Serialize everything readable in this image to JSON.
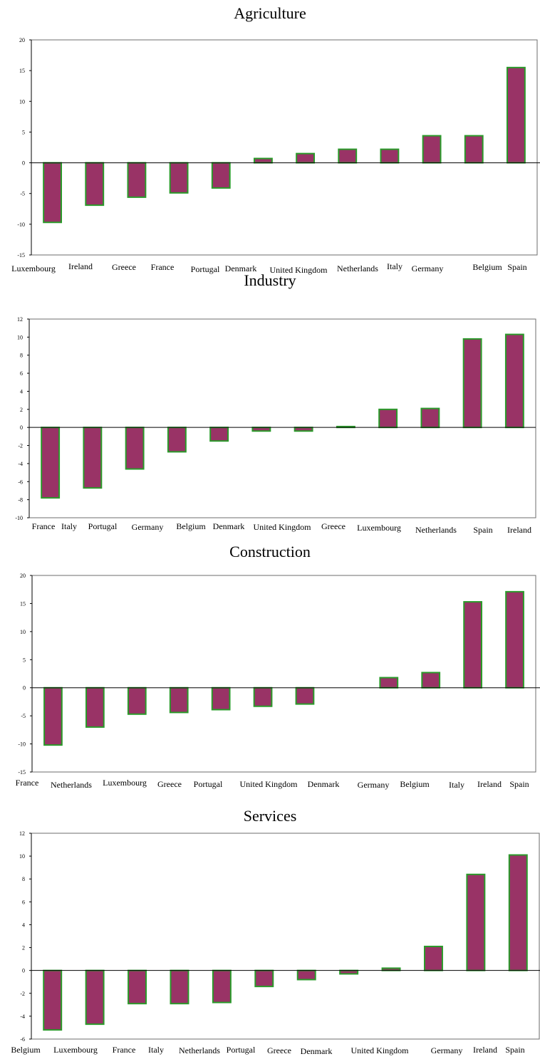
{
  "chart_data": [
    {
      "type": "bar",
      "title": "Agriculture",
      "categories": [
        "Luxembourg",
        "Ireland",
        "Greece",
        "France",
        "Portugal",
        "Denmark",
        "United Kingdom",
        "Netherlands",
        "Italy",
        "Germany",
        "Belgium",
        "Spain"
      ],
      "values": [
        -9.7,
        -6.9,
        -5.6,
        -4.9,
        -4.1,
        0.7,
        1.5,
        2.2,
        2.2,
        4.4,
        4.4,
        15.5
      ],
      "ylim": [
        -15,
        20
      ],
      "yticks": [
        20,
        15,
        10,
        5,
        0,
        -5,
        -10,
        -15
      ],
      "grid": false
    },
    {
      "type": "bar",
      "title": "Industry",
      "categories": [
        "France",
        "Italy",
        "Portugal",
        "Germany",
        "Belgium",
        "Denmark",
        "United Kingdom",
        "Greece",
        "Luxembourg",
        "Netherlands",
        "Spain",
        "Ireland"
      ],
      "values": [
        -7.8,
        -6.7,
        -4.6,
        -2.7,
        -1.5,
        -0.4,
        -0.4,
        0.1,
        2.0,
        2.1,
        9.8,
        10.3
      ],
      "ylim": [
        -10,
        12
      ],
      "yticks": [
        12,
        10,
        8,
        6,
        4,
        2,
        0,
        -2,
        -4,
        -6,
        -8,
        -10
      ],
      "grid": false
    },
    {
      "type": "bar",
      "title": "Construction",
      "categories": [
        "France",
        "Netherlands",
        "Luxembourg",
        "Greece",
        "Portugal",
        "United Kingdom",
        "Denmark",
        "Germany",
        "Belgium",
        "Italy",
        "Ireland",
        "Spain"
      ],
      "values": [
        -10.2,
        -7.0,
        -4.7,
        -4.4,
        -3.9,
        -3.3,
        -2.9,
        0.0,
        1.8,
        2.7,
        15.3,
        17.1
      ],
      "ylim": [
        -15,
        20
      ],
      "yticks": [
        20,
        15,
        10,
        5,
        0,
        -5,
        -10,
        -15
      ],
      "grid": false
    },
    {
      "type": "bar",
      "title": "Services",
      "categories": [
        "Belgium",
        "Luxembourg",
        "France",
        "Italy",
        "Netherlands",
        "Portugal",
        "Greece",
        "Denmark",
        "United Kingdom",
        "Germany",
        "Ireland",
        "Spain"
      ],
      "values": [
        -5.2,
        -4.7,
        -2.9,
        -2.9,
        -2.8,
        -1.4,
        -0.8,
        -0.3,
        0.2,
        2.1,
        8.4,
        10.1
      ],
      "ylim": [
        -6,
        12
      ],
      "yticks": [
        12,
        10,
        8,
        6,
        4,
        2,
        0,
        -2,
        -4,
        -6
      ],
      "grid": false
    }
  ]
}
